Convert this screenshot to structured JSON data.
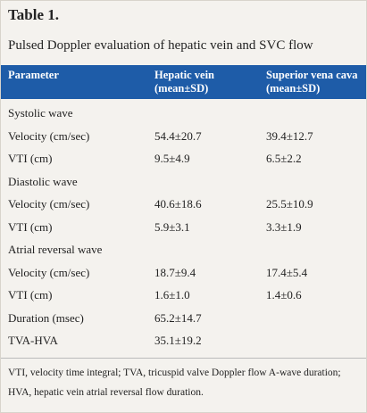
{
  "header": {
    "title": "Table 1.",
    "subtitle": "Pulsed Doppler evaluation of hepatic vein and SVC flow"
  },
  "table": {
    "columns": [
      [
        "Parameter"
      ],
      [
        "Hepatic vein",
        "(mean±SD)"
      ],
      [
        "Superior vena cava",
        "(mean±SD)"
      ]
    ],
    "rows": [
      [
        "Systolic wave"
      ],
      [
        "Velocity (cm/sec)",
        "54.4±20.7",
        "39.4±12.7"
      ],
      [
        "VTI (cm)",
        "9.5±4.9",
        "6.5±2.2"
      ],
      [
        "Diastolic wave"
      ],
      [
        "Velocity (cm/sec)",
        "40.6±18.6",
        "25.5±10.9"
      ],
      [
        "VTI (cm)",
        "5.9±3.1",
        "3.3±1.9"
      ],
      [
        "Atrial reversal wave"
      ],
      [
        "Velocity (cm/sec)",
        "18.7±9.4",
        "17.4±5.4"
      ],
      [
        "VTI (cm)",
        "1.6±1.0",
        "1.4±0.6"
      ],
      [
        "Duration (msec)",
        "65.2±14.7"
      ],
      [
        "TVA-HVA",
        "35.1±19.2"
      ]
    ]
  },
  "footnote": "VTI, velocity time integral; TVA, tricuspid valve Doppler flow A-wave duration; HVA, hepatic vein atrial reversal flow duration."
}
